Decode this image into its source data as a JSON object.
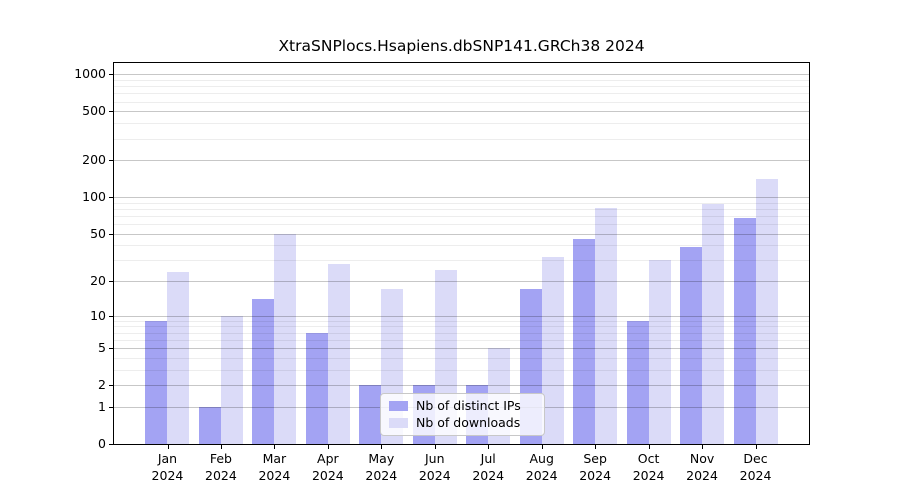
{
  "title": "XtraSNPlocs.Hsapiens.dbSNP141.GRCh38 2024",
  "chart_data": {
    "type": "bar",
    "title": "XtraSNPlocs.Hsapiens.dbSNP141.GRCh38 2024",
    "categories": [
      "Jan 2024",
      "Feb 2024",
      "Mar 2024",
      "Apr 2024",
      "May 2024",
      "Jun 2024",
      "Jul 2024",
      "Aug 2024",
      "Sep 2024",
      "Oct 2024",
      "Nov 2024",
      "Dec 2024"
    ],
    "x_tick_line1": [
      "Jan",
      "Feb",
      "Mar",
      "Apr",
      "May",
      "Jun",
      "Jul",
      "Aug",
      "Sep",
      "Oct",
      "Nov",
      "Dec"
    ],
    "x_tick_line2": "2024",
    "series": [
      {
        "name": "Nb of distinct IPs",
        "color": "#a3a3f3",
        "values": [
          9,
          1,
          14,
          7,
          2,
          2,
          2,
          17,
          45,
          9,
          39,
          67
        ]
      },
      {
        "name": "Nb of downloads",
        "color": "#dbdbf8",
        "values": [
          24,
          10,
          50,
          28,
          17,
          25,
          5,
          32,
          81,
          30,
          87,
          140
        ]
      }
    ],
    "y_axis": {
      "scale": "log10(value+1)",
      "tick_values": [
        0,
        1,
        2,
        5,
        10,
        20,
        50,
        100,
        200,
        500,
        1000
      ],
      "tick_labels": [
        "0",
        "1",
        "2",
        "5",
        "10",
        "20",
        "50",
        "100",
        "200",
        "500",
        "1000"
      ],
      "ylim": [
        0,
        1200
      ]
    },
    "grid": "both",
    "legend": {
      "position": "inside-lower-middle"
    }
  }
}
